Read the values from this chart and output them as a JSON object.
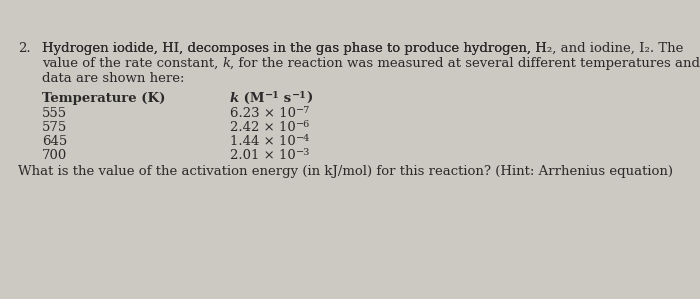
{
  "background_color": "#ccc8c2",
  "text_color": "#2a2a2a",
  "font_size": 9.5,
  "font_size_bold": 9.5,
  "line1_q": "2.",
  "line1_text_a": "Hydrogen iodide, HI, decomposes in the gas phase to produce hydrogen, H",
  "line1_sub1": "2",
  "line1_text_b": ", and iodine, I",
  "line1_sub2": "2",
  "line1_text_c": ". The",
  "line2_text_a": "value of the rate constant, ",
  "line2_k": "k",
  "line2_text_b": ", for the reaction was measured at several different temperatures and the",
  "line3_text": "data are shown here:",
  "col_temp_bold": "Temperature (K)",
  "col_k_bold_a": "k",
  "col_k_bold_b": " (M",
  "col_k_sup1": "−1",
  "col_k_bold_c": " s",
  "col_k_sup2": "−1",
  "col_k_bold_d": ")",
  "temperatures": [
    "555",
    "575",
    "645",
    "700"
  ],
  "k_values_a": [
    "6.23",
    "2.42",
    "1.44",
    "2.01"
  ],
  "k_values_b": [
    " × 10",
    " × 10",
    " × 10",
    " × 10"
  ],
  "k_exponents": [
    "−7",
    "−6",
    "−4",
    "−3"
  ],
  "question": "What is the value of the activation energy (in kJ/mol) for this reaction? (Hint: Arrhenius equation)"
}
